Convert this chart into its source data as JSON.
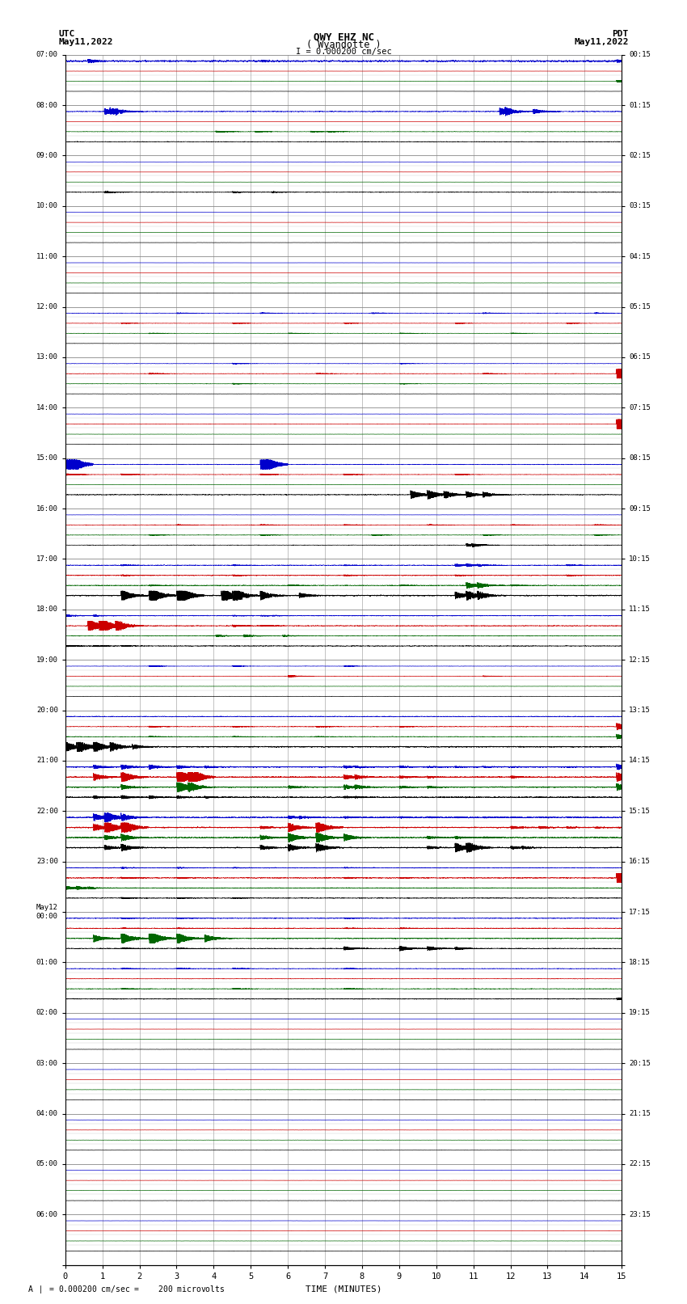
{
  "title_line1": "QWY EHZ NC",
  "title_line2": "( Wyandotte )",
  "scale_label": "I = 0.000200 cm/sec",
  "left_label_top": "UTC",
  "left_label_date": "May11,2022",
  "right_label_top": "PDT",
  "right_label_date": "May11,2022",
  "bottom_label": "TIME (MINUTES)",
  "footer_label": "= 0.000200 cm/sec =    200 microvolts",
  "utc_times": [
    "07:00",
    "08:00",
    "09:00",
    "10:00",
    "11:00",
    "12:00",
    "13:00",
    "14:00",
    "15:00",
    "16:00",
    "17:00",
    "18:00",
    "19:00",
    "20:00",
    "21:00",
    "22:00",
    "23:00",
    "May12\n00:00",
    "01:00",
    "02:00",
    "03:00",
    "04:00",
    "05:00",
    "06:00",
    ""
  ],
  "pdt_times": [
    "00:15",
    "01:15",
    "02:15",
    "03:15",
    "04:15",
    "05:15",
    "06:15",
    "07:15",
    "08:15",
    "09:15",
    "10:15",
    "11:15",
    "12:15",
    "13:15",
    "14:15",
    "15:15",
    "16:15",
    "17:15",
    "18:15",
    "19:15",
    "20:15",
    "21:15",
    "22:15",
    "23:15",
    ""
  ],
  "n_main_rows": 24,
  "sub_rows": 4,
  "x_min": 0,
  "x_max": 15,
  "bg_color": "#ffffff",
  "grid_color": "#aaaaaa",
  "trace_colors": [
    "#0000cc",
    "#cc0000",
    "#006600",
    "#000000"
  ],
  "trace_lw": 0.5
}
